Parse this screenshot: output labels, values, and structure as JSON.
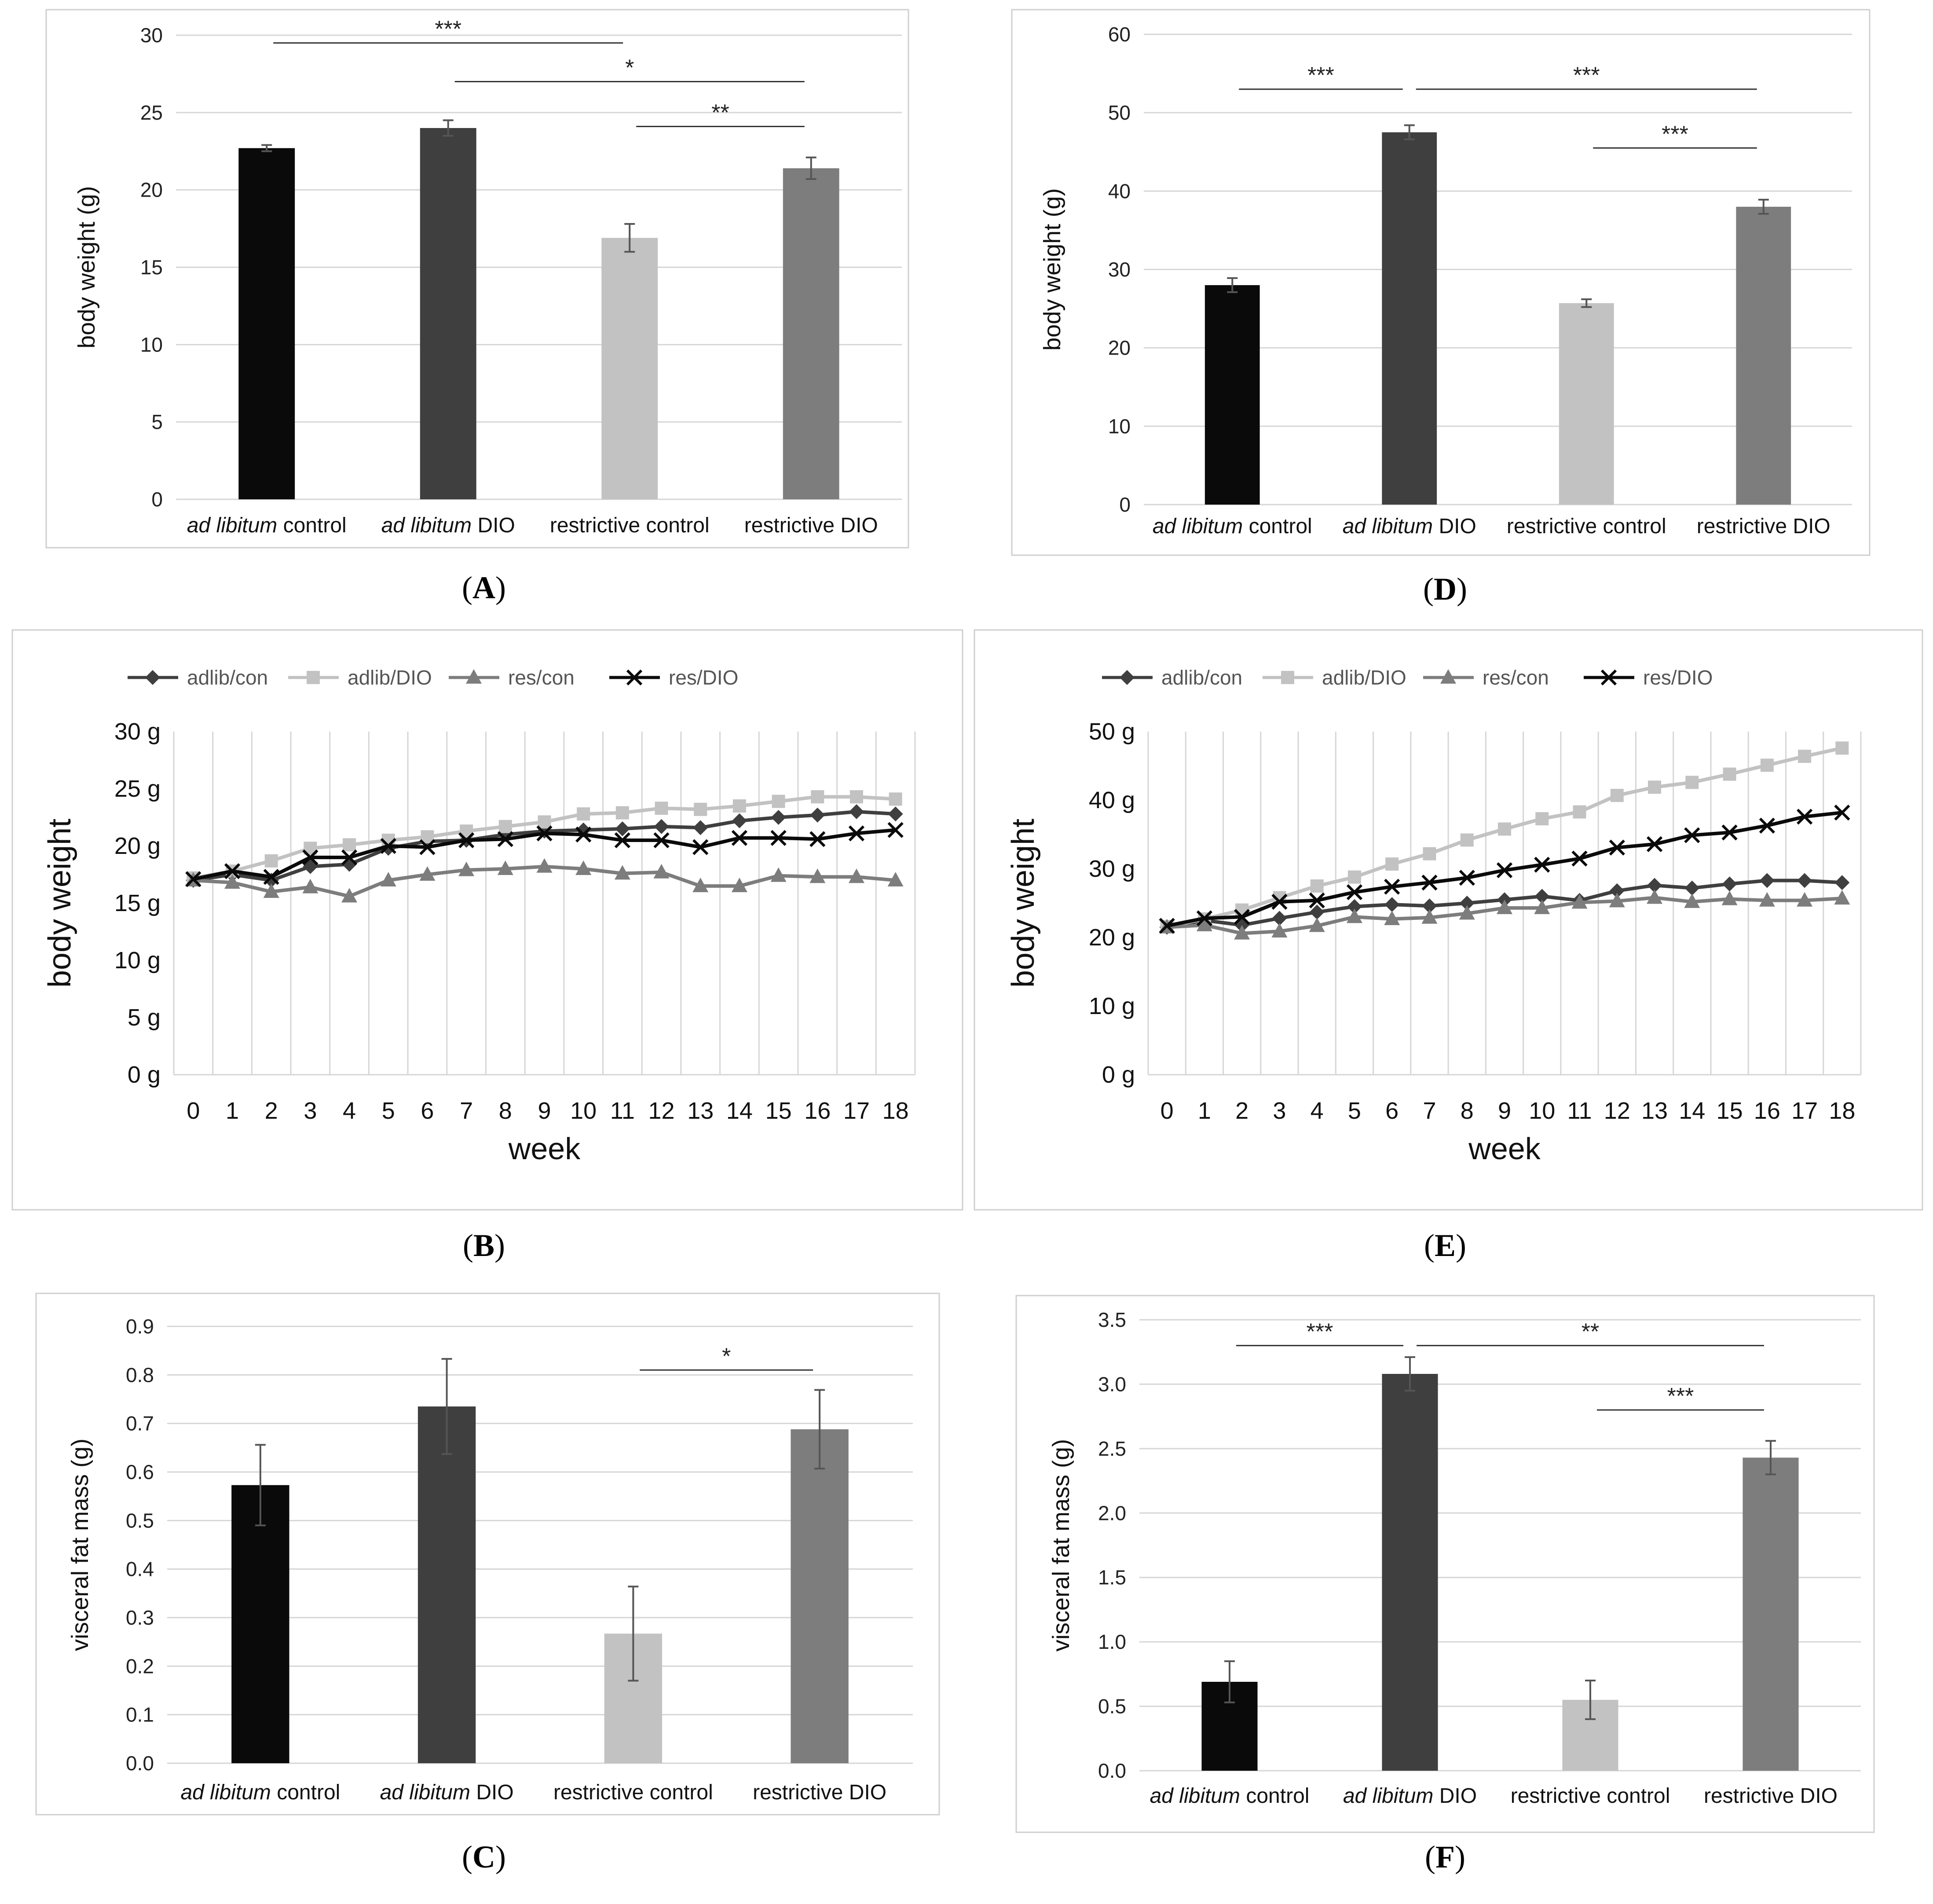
{
  "colors": {
    "black": "#0a0a0a",
    "dark": "#3f3f3f",
    "light": "#c2c2c2",
    "mid": "#7d7d7d",
    "grid": "#d6d6d6",
    "frame": "#cfcfcf",
    "sig_line": "#333333"
  },
  "chart_data": [
    {
      "panel": "A",
      "type": "bar",
      "caption": "A",
      "ylabel": "body weight (g)",
      "ylim": [
        0,
        30
      ],
      "yticks": [
        "0",
        "5",
        "10",
        "15",
        "20",
        "25",
        "30"
      ],
      "categories": [
        {
          "italic": "ad libitum",
          "rest": " control"
        },
        {
          "italic": "ad libitum",
          "rest": " DIO"
        },
        {
          "italic": "",
          "rest": "restrictive control"
        },
        {
          "italic": "",
          "rest": "restrictive DIO"
        }
      ],
      "values": [
        22.7,
        24.0,
        16.9,
        21.4
      ],
      "errors": [
        0.2,
        0.5,
        0.9,
        0.7
      ],
      "bar_colors": [
        "black",
        "dark",
        "light",
        "mid"
      ],
      "significance": [
        {
          "from": 0,
          "to": 2,
          "label": "***",
          "y": 29.5
        },
        {
          "from": 1,
          "to": 3,
          "label": "*",
          "y": 27.0
        },
        {
          "from": 2,
          "to": 3,
          "label": "**",
          "y": 24.1
        }
      ]
    },
    {
      "panel": "D",
      "type": "bar",
      "caption": "D",
      "ylabel": "body weight (g)",
      "ylim": [
        0,
        60
      ],
      "yticks": [
        "0",
        "10",
        "20",
        "30",
        "40",
        "50",
        "60"
      ],
      "categories": [
        {
          "italic": "ad libitum",
          "rest": " control"
        },
        {
          "italic": "ad libitum",
          "rest": " DIO"
        },
        {
          "italic": "",
          "rest": "restrictive control"
        },
        {
          "italic": "",
          "rest": "restrictive DIO"
        }
      ],
      "values": [
        28.0,
        47.5,
        25.7,
        38.0
      ],
      "errors": [
        0.9,
        0.9,
        0.5,
        0.9
      ],
      "bar_colors": [
        "black",
        "dark",
        "light",
        "mid"
      ],
      "significance": [
        {
          "from": 0,
          "to": 1,
          "label": "***",
          "y": 53.0
        },
        {
          "from": 1,
          "to": 3,
          "label": "***",
          "y": 53.0
        },
        {
          "from": 2,
          "to": 3,
          "label": "***",
          "y": 45.5
        }
      ]
    },
    {
      "panel": "B",
      "type": "line",
      "caption": "B",
      "ylabel": "body weight",
      "xlabel": "week",
      "ylim": [
        0,
        30
      ],
      "yticks": [
        "0 g",
        "5 g",
        "10 g",
        "15 g",
        "20 g",
        "25 g",
        "30 g"
      ],
      "x": [
        "0",
        "1",
        "2",
        "3",
        "4",
        "5",
        "6",
        "7",
        "8",
        "9",
        "10",
        "11",
        "12",
        "13",
        "14",
        "15",
        "16",
        "17",
        "18"
      ],
      "series": [
        {
          "name": "adlib/con",
          "marker": "diamond",
          "color": "dark",
          "values": [
            17.0,
            17.5,
            17.0,
            18.2,
            18.4,
            19.8,
            20.4,
            20.5,
            21.0,
            21.3,
            21.4,
            21.5,
            21.7,
            21.6,
            22.2,
            22.5,
            22.7,
            23.0,
            22.8
          ]
        },
        {
          "name": "adlib/DIO",
          "marker": "square",
          "color": "light",
          "values": [
            17.2,
            17.8,
            18.7,
            19.8,
            20.1,
            20.5,
            20.8,
            21.3,
            21.7,
            22.1,
            22.8,
            22.9,
            23.3,
            23.2,
            23.5,
            23.9,
            24.3,
            24.3,
            24.1
          ]
        },
        {
          "name": "res/con",
          "marker": "triangle",
          "color": "mid",
          "values": [
            17.0,
            16.8,
            16.0,
            16.4,
            15.6,
            17.0,
            17.5,
            17.9,
            18.0,
            18.2,
            18.0,
            17.6,
            17.7,
            16.5,
            16.5,
            17.4,
            17.3,
            17.3,
            17.0
          ]
        },
        {
          "name": "res/DIO",
          "marker": "x",
          "color": "black",
          "values": [
            17.1,
            17.8,
            17.3,
            19.0,
            19.0,
            20.0,
            19.9,
            20.5,
            20.6,
            21.1,
            21.0,
            20.5,
            20.5,
            19.9,
            20.7,
            20.7,
            20.6,
            21.1,
            21.4
          ]
        }
      ]
    },
    {
      "panel": "E",
      "type": "line",
      "caption": "E",
      "ylabel": "body weight",
      "xlabel": "week",
      "ylim": [
        0,
        50
      ],
      "yticks": [
        "0 g",
        "10 g",
        "20 g",
        "30 g",
        "40 g",
        "50 g"
      ],
      "x": [
        "0",
        "1",
        "2",
        "3",
        "4",
        "5",
        "6",
        "7",
        "8",
        "9",
        "10",
        "11",
        "12",
        "13",
        "14",
        "15",
        "16",
        "17",
        "18"
      ],
      "series": [
        {
          "name": "adlib/con",
          "marker": "diamond",
          "color": "dark",
          "values": [
            21.5,
            22.5,
            21.8,
            22.8,
            23.7,
            24.5,
            24.8,
            24.6,
            25.0,
            25.5,
            26.0,
            25.4,
            26.8,
            27.6,
            27.2,
            27.8,
            28.3,
            28.3,
            28.0
          ]
        },
        {
          "name": "adlib/DIO",
          "marker": "square",
          "color": "light",
          "values": [
            21.6,
            22.7,
            24.0,
            25.8,
            27.5,
            28.8,
            30.7,
            32.2,
            34.2,
            35.8,
            37.3,
            38.3,
            40.7,
            41.9,
            42.6,
            43.8,
            45.1,
            46.4,
            47.6
          ]
        },
        {
          "name": "res/con",
          "marker": "triangle",
          "color": "mid",
          "values": [
            21.5,
            21.8,
            20.6,
            20.9,
            21.7,
            23.0,
            22.7,
            22.9,
            23.5,
            24.3,
            24.3,
            25.1,
            25.3,
            25.8,
            25.2,
            25.6,
            25.4,
            25.4,
            25.7
          ]
        },
        {
          "name": "res/DIO",
          "marker": "x",
          "color": "black",
          "values": [
            21.7,
            22.8,
            23.0,
            25.2,
            25.4,
            26.6,
            27.4,
            28.0,
            28.7,
            29.8,
            30.6,
            31.5,
            33.1,
            33.6,
            34.9,
            35.3,
            36.3,
            37.6,
            38.2
          ]
        }
      ]
    },
    {
      "panel": "C",
      "type": "bar",
      "caption": "C",
      "ylabel": "visceral fat mass (g)",
      "ylim": [
        0,
        0.9
      ],
      "yticks": [
        "0.0",
        "0.1",
        "0.2",
        "0.3",
        "0.4",
        "0.5",
        "0.6",
        "0.7",
        "0.8",
        "0.9"
      ],
      "categories": [
        {
          "italic": "ad libitum",
          "rest": " control"
        },
        {
          "italic": "ad libitum",
          "rest": " DIO"
        },
        {
          "italic": "",
          "rest": "restrictive control"
        },
        {
          "italic": "",
          "rest": "restrictive DIO"
        }
      ],
      "values": [
        0.573,
        0.735,
        0.267,
        0.688
      ],
      "errors": [
        0.083,
        0.098,
        0.097,
        0.081
      ],
      "bar_colors": [
        "black",
        "dark",
        "light",
        "mid"
      ],
      "significance": [
        {
          "from": 2,
          "to": 3,
          "label": "*",
          "y": 0.81
        }
      ]
    },
    {
      "panel": "F",
      "type": "bar",
      "caption": "F",
      "ylabel": "visceral fat mass (g)",
      "ylim": [
        0,
        3.5
      ],
      "yticks": [
        "0.0",
        "0.5",
        "1.0",
        "1.5",
        "2.0",
        "2.5",
        "3.0",
        "3.5"
      ],
      "categories": [
        {
          "italic": "ad libitum",
          "rest": " control"
        },
        {
          "italic": "ad libitum",
          "rest": " DIO"
        },
        {
          "italic": "",
          "rest": "restrictive control"
        },
        {
          "italic": "",
          "rest": "restrictive DIO"
        }
      ],
      "values": [
        0.69,
        3.08,
        0.55,
        2.43
      ],
      "errors": [
        0.16,
        0.13,
        0.15,
        0.13
      ],
      "bar_colors": [
        "black",
        "dark",
        "light",
        "mid"
      ],
      "significance": [
        {
          "from": 0,
          "to": 1,
          "label": "***",
          "y": 3.3
        },
        {
          "from": 1,
          "to": 3,
          "label": "**",
          "y": 3.3
        },
        {
          "from": 2,
          "to": 3,
          "label": "***",
          "y": 2.8
        }
      ]
    }
  ]
}
